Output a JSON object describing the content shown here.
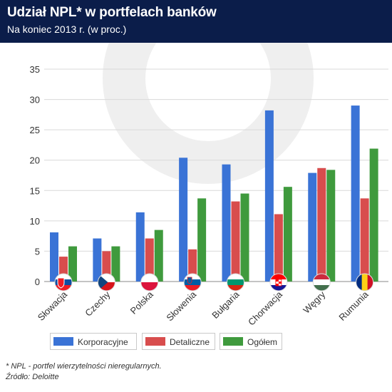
{
  "header": {
    "title": "Udział NPL* w portfelach banków",
    "subtitle": "Na koniec 2013 r. (w proc.)"
  },
  "footnotes": {
    "note": "* NPL - portfel wierzytelności nieregularnych.",
    "source": "Źródło: Deloitte"
  },
  "chart_data": {
    "type": "bar",
    "title": "Udział NPL* w portfelach banków",
    "subtitle": "Na koniec 2013 r. (w proc.)",
    "xlabel": "",
    "ylabel": "",
    "categories": [
      "Słowacja",
      "Czechy",
      "Polska",
      "Słowenia",
      "Bułgaria",
      "Chorwacja",
      "Węgry",
      "Rumunia"
    ],
    "flag_icons": [
      "flag-slovakia-icon",
      "flag-czechia-icon",
      "flag-poland-icon",
      "flag-slovenia-icon",
      "flag-bulgaria-icon",
      "flag-croatia-icon",
      "flag-hungary-icon",
      "flag-romania-icon"
    ],
    "series": [
      {
        "name": "Korporacyjne",
        "color": "#3a73d6",
        "values": [
          8.1,
          7.1,
          11.4,
          20.4,
          19.3,
          28.2,
          17.9,
          29.0
        ]
      },
      {
        "name": "Detaliczne",
        "color": "#d84d4d",
        "values": [
          4.1,
          5.0,
          7.1,
          5.3,
          13.2,
          11.1,
          18.7,
          13.7
        ]
      },
      {
        "name": "Ogółem",
        "color": "#3f9a3d",
        "values": [
          5.8,
          5.8,
          8.5,
          13.7,
          14.5,
          15.6,
          18.4,
          21.9
        ]
      }
    ],
    "yticks": [
      0,
      5,
      10,
      15,
      20,
      25,
      30,
      35
    ],
    "ylim": [
      0,
      35
    ],
    "grid": true,
    "legend": "bottom"
  }
}
